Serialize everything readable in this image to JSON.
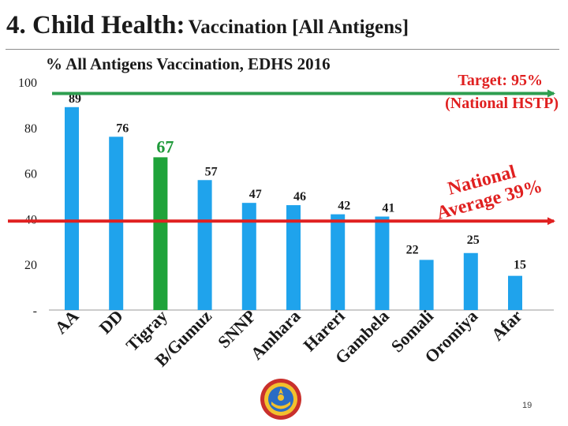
{
  "slide": {
    "title_main": "4. Child Health:",
    "title_sub": "Vaccination [All Antigens]",
    "page_number": "19"
  },
  "chart_data": {
    "type": "bar",
    "title": "% All Antigens Vaccination, EDHS 2016",
    "categories": [
      "AA",
      "DD",
      "Tigray",
      "B/Gumuz",
      "SNNP",
      "Amhara",
      "Hareri",
      "Gambela",
      "Somali",
      "Oromiya",
      "Afar"
    ],
    "values": [
      89,
      76,
      67,
      57,
      47,
      46,
      42,
      41,
      22,
      25,
      15
    ],
    "highlight_category": "Tigray",
    "ylim": [
      0,
      100
    ],
    "yticks": [
      {
        "value": 0,
        "label": "-"
      },
      {
        "value": 20,
        "label": "20"
      },
      {
        "value": 40,
        "label": "40"
      },
      {
        "value": 60,
        "label": "60"
      },
      {
        "value": 80,
        "label": "80"
      },
      {
        "value": 100,
        "label": "100"
      }
    ],
    "grid": false,
    "reference_lines": [
      {
        "value": 95,
        "label_lines": [
          "Target: 95%",
          "(National HSTP)"
        ],
        "color": "#2e9e4f"
      },
      {
        "value": 39,
        "label_lines": [
          "National",
          "Average 39%"
        ],
        "color": "#e02020"
      }
    ],
    "colors": {
      "bar": "#1fa3ec",
      "highlight_bar": "#1fa33a",
      "highlight_label": "#1f9a3a",
      "annotation": "#e02020",
      "target": "#2e9e4f",
      "axis": "#999999",
      "text": "#1a1a1a"
    }
  }
}
